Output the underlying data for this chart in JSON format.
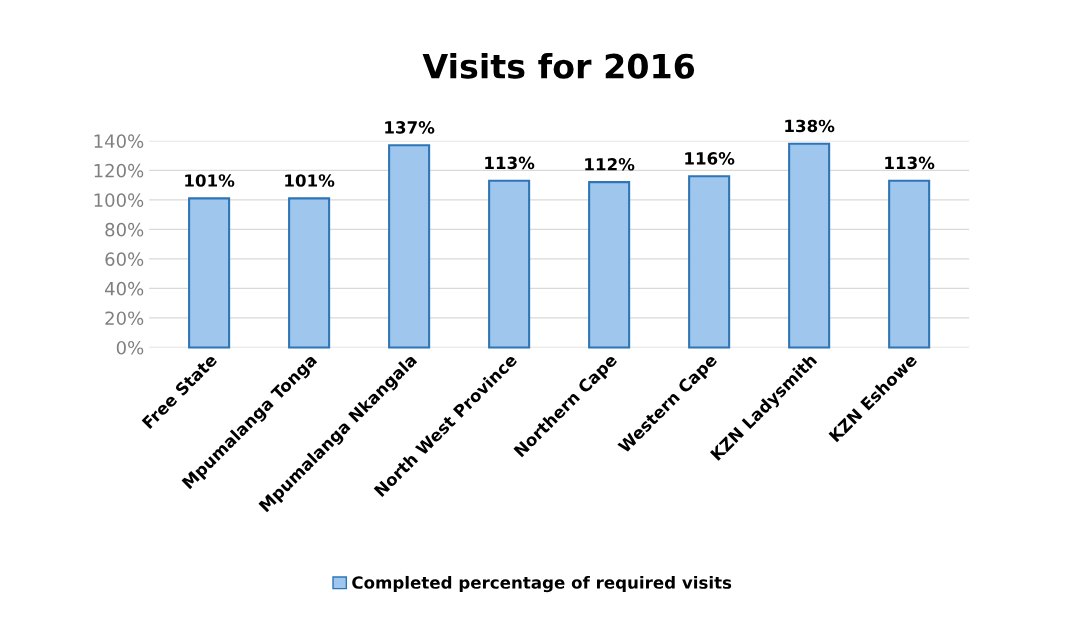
{
  "chart_data": {
    "type": "bar",
    "title": "Visits for 2016",
    "categories": [
      "Free State",
      "Mpumalanga Tonga",
      "Mpumalanga Nkangala",
      "North West Province",
      "Northern Cape",
      "Western Cape",
      "KZN Ladysmith",
      "KZN Eshowe"
    ],
    "series": [
      {
        "name": "Completed percentage of required visits",
        "color": "#9fc7ee",
        "values": [
          101,
          101,
          137,
          113,
          112,
          116,
          138,
          113
        ],
        "value_labels": [
          "101%",
          "101%",
          "137%",
          "113%",
          "112%",
          "116%",
          "138%",
          "113%"
        ]
      }
    ],
    "ylim": [
      0,
      140
    ],
    "yticks": [
      {
        "value": 0,
        "label": "0%"
      },
      {
        "value": 20,
        "label": "20%"
      },
      {
        "value": 40,
        "label": "40%"
      },
      {
        "value": 60,
        "label": "60%"
      },
      {
        "value": 80,
        "label": "80%"
      },
      {
        "value": 100,
        "label": "100%"
      },
      {
        "value": 120,
        "label": "120%"
      },
      {
        "value": 140,
        "label": "140%"
      }
    ],
    "grid": "y",
    "legend": "bottom"
  }
}
